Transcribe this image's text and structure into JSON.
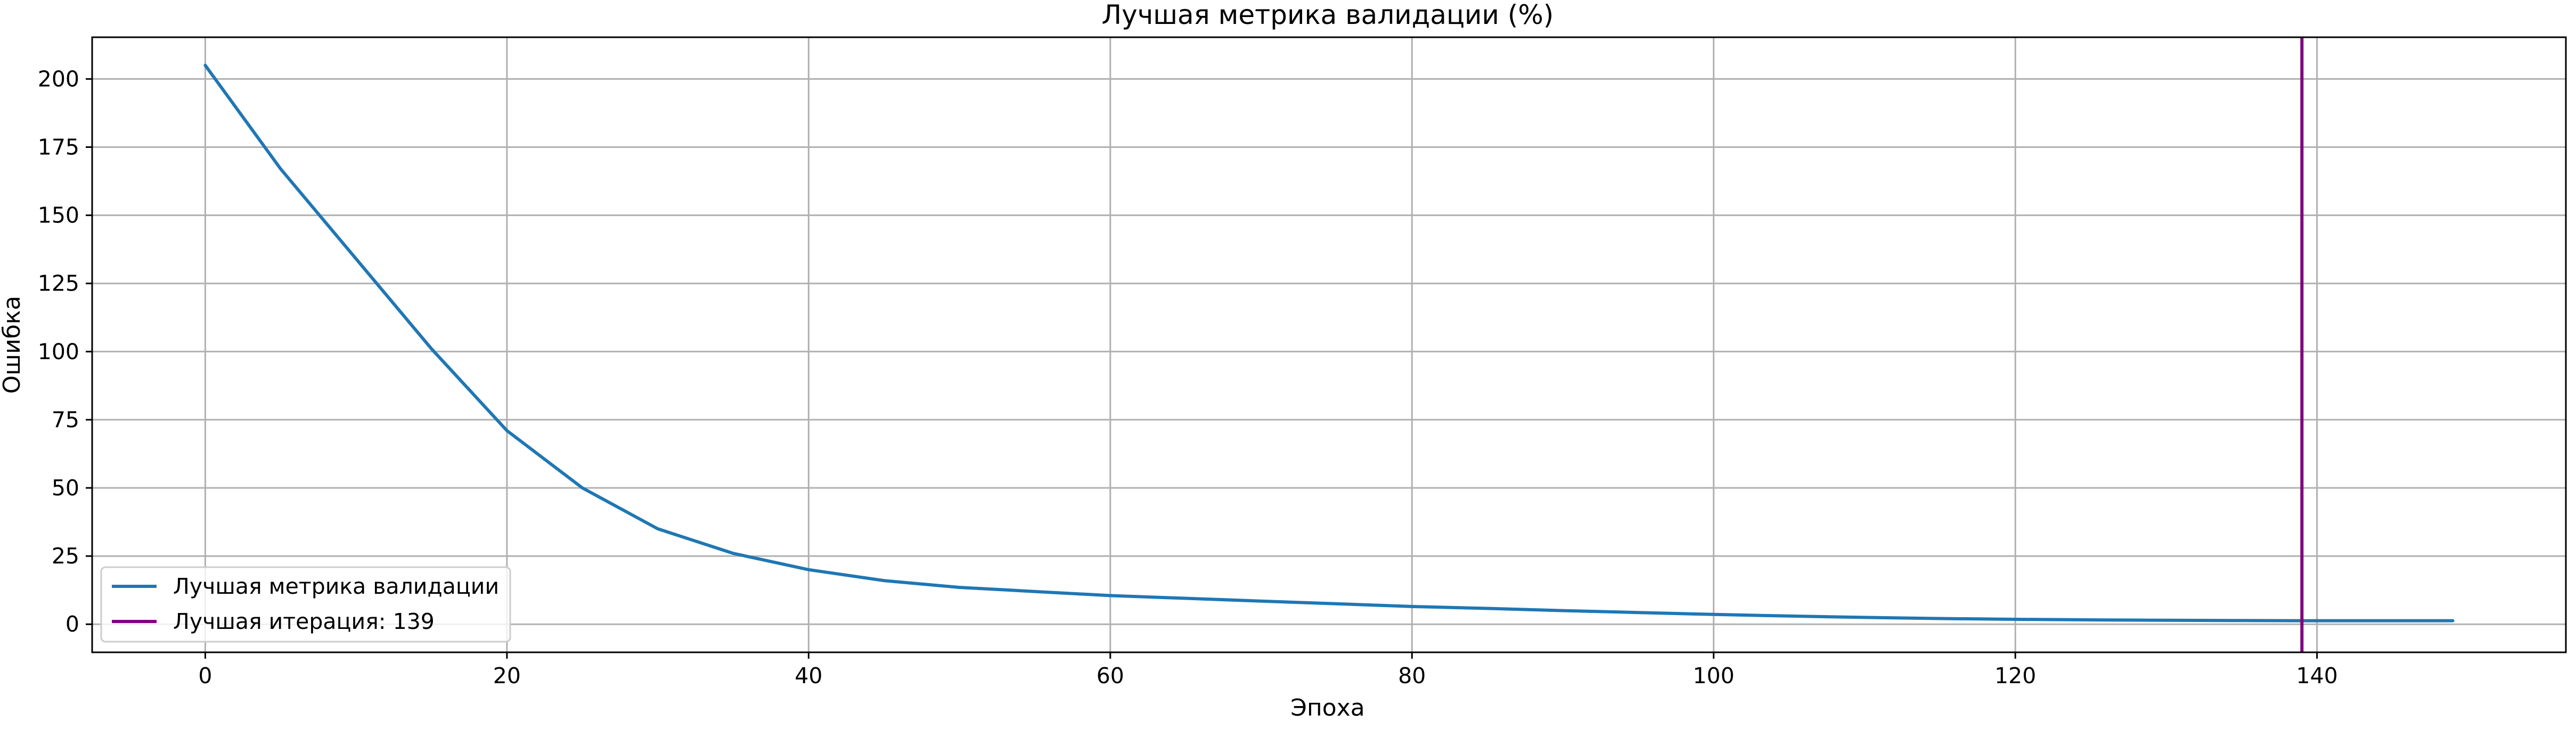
{
  "chart_data": {
    "type": "line",
    "title": "Лучшая метрика валидации (%)",
    "xlabel": "Эпоха",
    "ylabel": "Ошибка",
    "xlim": [
      -7.5,
      156.5
    ],
    "ylim": [
      -10.3,
      215.3
    ],
    "x_ticks": [
      0,
      20,
      40,
      60,
      80,
      100,
      120,
      140
    ],
    "x_tick_labels": [
      "0",
      "20",
      "40",
      "60",
      "80",
      "100",
      "120",
      "140"
    ],
    "y_ticks": [
      0,
      25,
      50,
      75,
      100,
      125,
      150,
      175,
      200
    ],
    "y_tick_labels": [
      "0",
      "25",
      "50",
      "75",
      "100",
      "125",
      "150",
      "175",
      "200"
    ],
    "grid": true,
    "legend_position": "lower-left",
    "series": [
      {
        "name": "Лучшая метрика валидации",
        "color": "#1f77b4",
        "x": [
          0,
          5,
          10,
          15,
          20,
          25,
          30,
          35,
          40,
          45,
          50,
          55,
          60,
          65,
          70,
          75,
          80,
          85,
          90,
          95,
          100,
          105,
          110,
          115,
          120,
          125,
          130,
          135,
          139,
          145,
          149
        ],
        "y": [
          205,
          167,
          134,
          101,
          71,
          50,
          35,
          26,
          20,
          16,
          13.5,
          12,
          10.5,
          9.5,
          8.5,
          7.5,
          6.5,
          5.8,
          5,
          4.3,
          3.6,
          3,
          2.5,
          2.1,
          1.8,
          1.6,
          1.45,
          1.35,
          1.3,
          1.3,
          1.3
        ]
      }
    ],
    "vline": {
      "name": "Лучшая итерация: 139",
      "x": 139,
      "color": "#800080"
    }
  }
}
